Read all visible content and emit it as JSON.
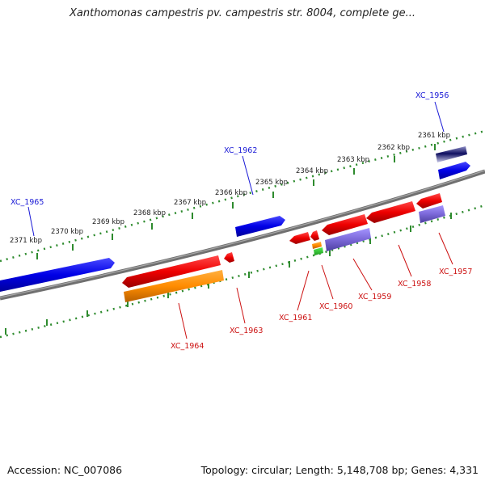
{
  "title": "Xanthomonas campestris pv. campestris str. 8004, complete ge...",
  "footer": {
    "accession": "Accession: NC_007086",
    "summary": "Topology: circular; Length: 5,148,708 bp; Genes: 4,331"
  },
  "ticks": [
    "2361 kbp",
    "2362 kbp",
    "2363 kbp",
    "2364 kbp",
    "2365 kbp",
    "2366 kbp",
    "2367 kbp",
    "2368 kbp",
    "2369 kbp",
    "2370 kbp",
    "2371 kbp"
  ],
  "genes": {
    "XC_1956": "XC_1956",
    "XC_1957": "XC_1957",
    "XC_1958": "XC_1958",
    "XC_1959": "XC_1959",
    "XC_1960": "XC_1960",
    "XC_1961": "XC_1961",
    "XC_1962": "XC_1962",
    "XC_1963": "XC_1963",
    "XC_1964": "XC_1964",
    "XC_1965": "XC_1965"
  },
  "colors": {
    "plus_strand_gene": "#0000ee",
    "minus_strand_gene": "#ee0000",
    "minus_strand_cds": "#7b68d8",
    "rna_gene": "#ff8c00",
    "backbone": "#808080",
    "scale_dots": "#2e8b2e"
  }
}
